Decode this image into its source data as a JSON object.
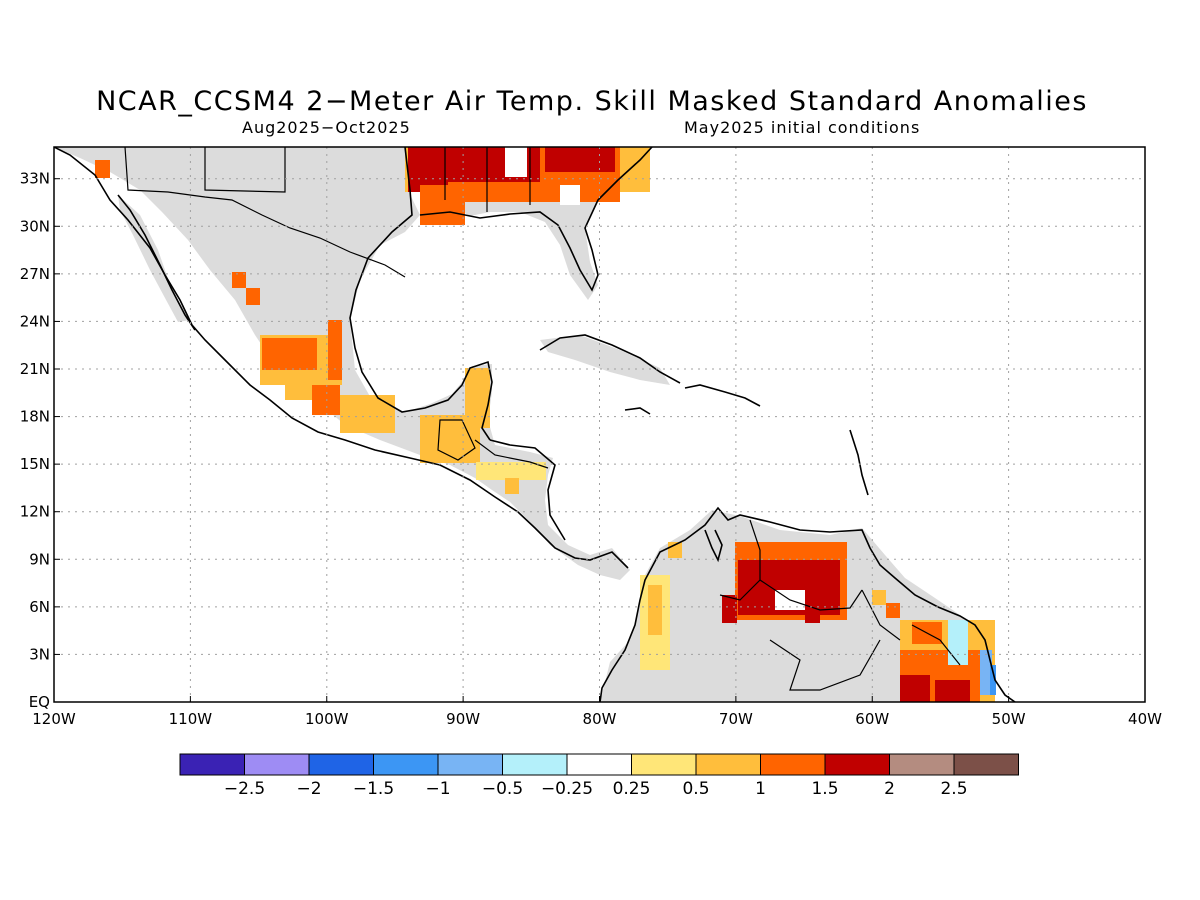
{
  "title": "NCAR_CCSM4 2−Meter Air Temp. Skill Masked Standard Anomalies",
  "subtitle_left": "Aug2025−Oct2025",
  "subtitle_right": "May2025 initial conditions",
  "colors": {
    "land_gray": "#dcdcdc",
    "coast": "#000000",
    "grid": "#a0a0a0"
  },
  "axes": {
    "lon_range": [
      -120,
      -40
    ],
    "lat_range": [
      0,
      35
    ],
    "lon_ticks": [
      {
        "value": -120,
        "label": "120W"
      },
      {
        "value": -110,
        "label": "110W"
      },
      {
        "value": -100,
        "label": "100W"
      },
      {
        "value": -90,
        "label": "90W"
      },
      {
        "value": -80,
        "label": "80W"
      },
      {
        "value": -70,
        "label": "70W"
      },
      {
        "value": -60,
        "label": "60W"
      },
      {
        "value": -50,
        "label": "50W"
      },
      {
        "value": -40,
        "label": "40W"
      }
    ],
    "lat_ticks": [
      {
        "value": 0,
        "label": "EQ"
      },
      {
        "value": 3,
        "label": "3N"
      },
      {
        "value": 6,
        "label": "6N"
      },
      {
        "value": 9,
        "label": "9N"
      },
      {
        "value": 12,
        "label": "12N"
      },
      {
        "value": 15,
        "label": "15N"
      },
      {
        "value": 18,
        "label": "18N"
      },
      {
        "value": 21,
        "label": "21N"
      },
      {
        "value": 24,
        "label": "24N"
      },
      {
        "value": 27,
        "label": "27N"
      },
      {
        "value": 30,
        "label": "30N"
      },
      {
        "value": 33,
        "label": "33N"
      }
    ]
  },
  "colorbar": {
    "colors": [
      "#3a22b4",
      "#9e8cf4",
      "#1f64e6",
      "#3c96f4",
      "#78b4f4",
      "#b4f0fa",
      "#ffffff",
      "#ffe678",
      "#ffbe3c",
      "#ff6400",
      "#c00000",
      "#b48c80",
      "#7c5048"
    ],
    "labels": [
      "−2.5",
      "−2",
      "−1.5",
      "−1",
      "−0.5",
      "−0.25",
      "0.25",
      "0.5",
      "1",
      "1.5",
      "2",
      "2.5"
    ]
  },
  "anomaly_patches": [
    {
      "region": "western Mexico",
      "level": 1.0,
      "lon": [
        -104,
        -98
      ],
      "lat": [
        20,
        23
      ]
    },
    {
      "region": "southern Mexico",
      "level": 0.5,
      "lon": [
        -99,
        -95
      ],
      "lat": [
        17.5,
        21
      ]
    },
    {
      "region": "Guatemala",
      "level": 0.5,
      "lon": [
        -92,
        -88
      ],
      "lat": [
        15,
        18
      ]
    },
    {
      "region": "Honduras",
      "level": 0.25,
      "lon": [
        -88,
        -84
      ],
      "lat": [
        14,
        16
      ]
    },
    {
      "region": "southeastern United States",
      "level": 1.5,
      "lon": [
        -90,
        -77
      ],
      "lat": [
        31,
        35
      ]
    },
    {
      "region": "Louisiana",
      "level": 2.0,
      "lon": [
        -94,
        -90
      ],
      "lat": [
        31,
        35
      ]
    },
    {
      "region": "Venezuela",
      "level": 2.0,
      "lon": [
        -70,
        -62
      ],
      "lat": [
        5,
        9
      ]
    },
    {
      "region": "Colombia west coast",
      "level": 0.5,
      "lon": [
        -77,
        -75
      ],
      "lat": [
        2,
        7
      ]
    },
    {
      "region": "Suriname / French Guiana",
      "level": 2.0,
      "lon": [
        -58,
        -51
      ],
      "lat": [
        0,
        5
      ]
    }
  ]
}
